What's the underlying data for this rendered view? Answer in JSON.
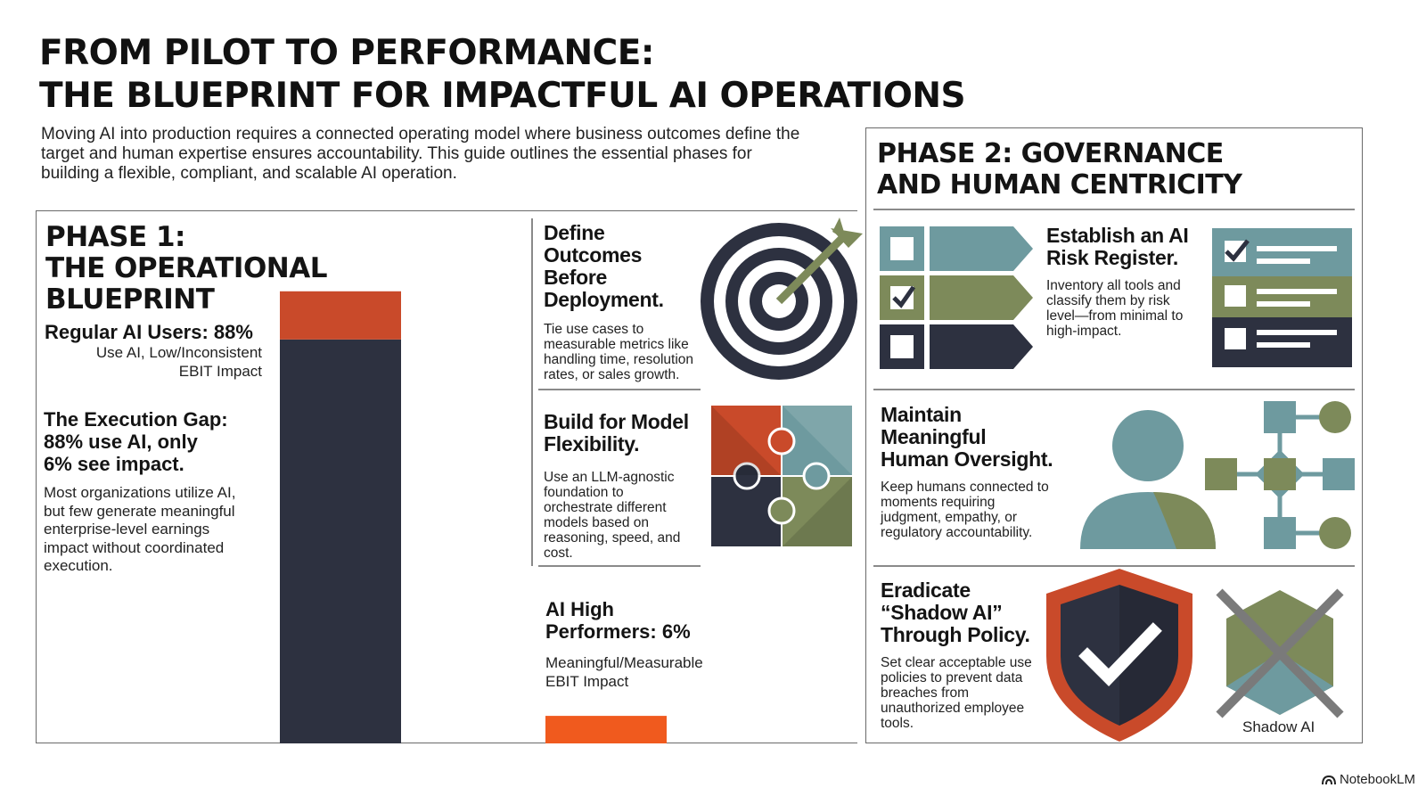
{
  "title": {
    "line1": "FROM PILOT TO PERFORMANCE:",
    "line2": "THE BLUEPRINT FOR IMPACTFUL AI OPERATIONS"
  },
  "intro": "Moving AI into production requires a connected operating model where business outcomes define the target and human expertise ensures accountability. This guide outlines the essential phases for building a flexible, compliant, and scalable AI operation.",
  "phase1": {
    "title_lines": [
      "PHASE 1:",
      "THE OPERATIONAL",
      "BLUEPRINT"
    ],
    "regular_users": {
      "heading": "Regular AI Users: 88%",
      "sub": "Use AI, Low/Inconsistent EBIT Impact"
    },
    "gap": {
      "heading_lines": [
        "The Execution Gap:",
        "88% use AI, only",
        "6% see impact."
      ],
      "body": "Most organizations utilize AI, but few generate meaningful enterprise-level earnings impact without coordinated execution."
    },
    "high_performers": {
      "heading_lines": [
        "AI High",
        "Performers: 6%"
      ],
      "sub": "Meaningful/Measurable EBIT Impact"
    },
    "sections": [
      {
        "heading_lines": [
          "Define",
          "Outcomes",
          "Before",
          "Deployment."
        ],
        "body": "Tie use cases to measurable metrics like handling time, resolution rates, or sales growth.",
        "icon": "target-icon"
      },
      {
        "heading_lines": [
          "Build for Model",
          "Flexibility."
        ],
        "body": "Use an LLM-agnostic foundation to orchestrate different models based on reasoning, speed, and cost.",
        "icon": "puzzle-icon"
      }
    ]
  },
  "phase2": {
    "title_lines": [
      "PHASE 2: GOVERNANCE",
      "AND HUMAN CENTRICITY"
    ],
    "sections": [
      {
        "heading_lines": [
          "Establish an AI",
          "Risk Register."
        ],
        "body": "Inventory all tools and classify them by risk level—from minimal to high-impact.",
        "icon": "checklist-icon"
      },
      {
        "heading_lines": [
          "Maintain",
          "Meaningful",
          "Human Oversight."
        ],
        "body": "Keep humans connected to moments requiring judgment, empathy, or regulatory accountability.",
        "icon": "person-network-icon"
      },
      {
        "heading_lines": [
          "Eradicate",
          "“Shadow AI”",
          "Through Policy."
        ],
        "body": "Set clear acceptable use policies to prevent data breaches from unauthorized employee tools.",
        "icon": "shield-check-icon",
        "shadow_label": "Shadow AI"
      }
    ]
  },
  "chart_data": {
    "type": "bar",
    "categories": [
      "Regular AI Users",
      "AI High Performers"
    ],
    "values": [
      88,
      6
    ],
    "unit": "%",
    "ylim": [
      0,
      100
    ]
  },
  "colors": {
    "navy": "#2d3140",
    "orange": "#f05a1e",
    "rust": "#c94a2a",
    "teal": "#6e9a9f",
    "olive": "#7d8a5a"
  },
  "brand": "NotebookLM"
}
